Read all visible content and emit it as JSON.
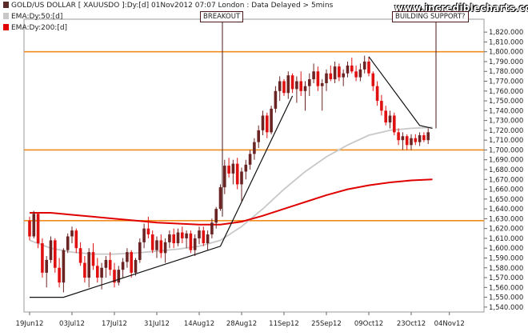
{
  "header": {
    "title_line": "GOLD/US DOLLAR [ XAUUSDO ]:Dy:[d]  01Nov2012 07:07 London : Data Delayed > 5mins",
    "legend": [
      {
        "label": "EMA:Dy:50:[d]",
        "color": "#c8c8c8"
      },
      {
        "label": "EMA:Dy:200:[d]",
        "color": "#e00000"
      }
    ],
    "watermark": "www.incrediblecharts.com"
  },
  "annotations": {
    "breakout": "BREAKOUT",
    "support": "BUILDING SUPPORT?"
  },
  "colors": {
    "up": "#6b2424",
    "down": "#e01010",
    "ema50": "#c8c8c8",
    "ema200": "#e00000",
    "hline": "#f08c1e",
    "trend": "#111111"
  },
  "chart_data": {
    "type": "candlestick",
    "title": "GOLD/US DOLLAR [ XAUUSDO ]:Dy:[d]",
    "ylim": [
      1535,
      1825
    ],
    "y_ticks": [
      1540,
      1550,
      1560,
      1570,
      1580,
      1590,
      1600,
      1610,
      1620,
      1630,
      1640,
      1650,
      1660,
      1670,
      1680,
      1690,
      1700,
      1710,
      1720,
      1730,
      1740,
      1750,
      1760,
      1770,
      1780,
      1790,
      1800,
      1810,
      1820
    ],
    "x_tick_labels": [
      {
        "label": "19Jun12",
        "day": 0
      },
      {
        "label": "03Jul12",
        "day": 10
      },
      {
        "label": "17Jul12",
        "day": 20
      },
      {
        "label": "31Jul12",
        "day": 30
      },
      {
        "label": "14Aug12",
        "day": 40
      },
      {
        "label": "28Aug12",
        "day": 50
      },
      {
        "label": "11Sep12",
        "day": 60
      },
      {
        "label": "25Sep12",
        "day": 70
      },
      {
        "label": "09Oct12",
        "day": 80
      },
      {
        "label": "23Oct12",
        "day": 90
      },
      {
        "label": "04Nov12",
        "day": 99
      }
    ],
    "horizontal_lines": [
      1800,
      1700,
      1628
    ],
    "trend_lines": [
      {
        "points": [
          [
            0,
            1550
          ],
          [
            8,
            1550
          ],
          [
            45,
            1602
          ],
          [
            62,
            1755
          ]
        ]
      },
      {
        "points": [
          [
            80,
            1795
          ],
          [
            92,
            1725
          ],
          [
            95,
            1722
          ]
        ]
      }
    ],
    "candles": [
      [
        1628,
        1632,
        1608,
        1612
      ],
      [
        1612,
        1638,
        1610,
        1635
      ],
      [
        1635,
        1636,
        1600,
        1605
      ],
      [
        1605,
        1610,
        1570,
        1575
      ],
      [
        1575,
        1592,
        1560,
        1588
      ],
      [
        1588,
        1612,
        1585,
        1608
      ],
      [
        1608,
        1610,
        1575,
        1580
      ],
      [
        1580,
        1590,
        1560,
        1565
      ],
      [
        1565,
        1600,
        1555,
        1598
      ],
      [
        1598,
        1615,
        1595,
        1612
      ],
      [
        1612,
        1622,
        1605,
        1618
      ],
      [
        1618,
        1620,
        1595,
        1600
      ],
      [
        1600,
        1606,
        1582,
        1585
      ],
      [
        1585,
        1592,
        1565,
        1570
      ],
      [
        1570,
        1600,
        1560,
        1596
      ],
      [
        1596,
        1605,
        1578,
        1582
      ],
      [
        1582,
        1590,
        1565,
        1570
      ],
      [
        1570,
        1585,
        1558,
        1580
      ],
      [
        1580,
        1592,
        1570,
        1588
      ],
      [
        1588,
        1596,
        1572,
        1578
      ],
      [
        1578,
        1585,
        1560,
        1565
      ],
      [
        1565,
        1582,
        1562,
        1578
      ],
      [
        1578,
        1590,
        1570,
        1586
      ],
      [
        1586,
        1600,
        1580,
        1596
      ],
      [
        1596,
        1598,
        1570,
        1575
      ],
      [
        1575,
        1590,
        1572,
        1588
      ],
      [
        1588,
        1610,
        1585,
        1606
      ],
      [
        1606,
        1625,
        1600,
        1620
      ],
      [
        1620,
        1632,
        1610,
        1614
      ],
      [
        1614,
        1618,
        1595,
        1598
      ],
      [
        1598,
        1612,
        1590,
        1608
      ],
      [
        1608,
        1614,
        1590,
        1595
      ],
      [
        1595,
        1610,
        1585,
        1606
      ],
      [
        1606,
        1618,
        1600,
        1614
      ],
      [
        1614,
        1620,
        1600,
        1605
      ],
      [
        1605,
        1620,
        1602,
        1616
      ],
      [
        1616,
        1622,
        1605,
        1610
      ],
      [
        1610,
        1618,
        1600,
        1615
      ],
      [
        1615,
        1618,
        1595,
        1598
      ],
      [
        1598,
        1614,
        1592,
        1610
      ],
      [
        1610,
        1622,
        1604,
        1618
      ],
      [
        1618,
        1622,
        1602,
        1605
      ],
      [
        1605,
        1618,
        1598,
        1614
      ],
      [
        1614,
        1630,
        1610,
        1626
      ],
      [
        1626,
        1642,
        1620,
        1640
      ],
      [
        1640,
        1665,
        1638,
        1662
      ],
      [
        1662,
        1690,
        1655,
        1684
      ],
      [
        1684,
        1692,
        1672,
        1676
      ],
      [
        1676,
        1690,
        1665,
        1686
      ],
      [
        1686,
        1692,
        1660,
        1665
      ],
      [
        1665,
        1682,
        1648,
        1678
      ],
      [
        1678,
        1690,
        1670,
        1685
      ],
      [
        1685,
        1700,
        1680,
        1696
      ],
      [
        1696,
        1712,
        1690,
        1708
      ],
      [
        1708,
        1725,
        1702,
        1720
      ],
      [
        1720,
        1740,
        1715,
        1735
      ],
      [
        1735,
        1738,
        1712,
        1718
      ],
      [
        1718,
        1745,
        1716,
        1742
      ],
      [
        1742,
        1765,
        1738,
        1760
      ],
      [
        1760,
        1775,
        1750,
        1770
      ],
      [
        1770,
        1772,
        1755,
        1758
      ],
      [
        1758,
        1780,
        1752,
        1776
      ],
      [
        1776,
        1778,
        1758,
        1762
      ],
      [
        1762,
        1775,
        1748,
        1770
      ],
      [
        1770,
        1780,
        1755,
        1760
      ],
      [
        1760,
        1770,
        1740,
        1765
      ],
      [
        1765,
        1778,
        1755,
        1772
      ],
      [
        1772,
        1788,
        1768,
        1780
      ],
      [
        1780,
        1785,
        1760,
        1765
      ],
      [
        1765,
        1772,
        1740,
        1768
      ],
      [
        1768,
        1782,
        1760,
        1778
      ],
      [
        1778,
        1786,
        1770,
        1772
      ],
      [
        1772,
        1790,
        1768,
        1785
      ],
      [
        1785,
        1788,
        1770,
        1774
      ],
      [
        1774,
        1782,
        1765,
        1778
      ],
      [
        1778,
        1790,
        1774,
        1786
      ],
      [
        1786,
        1794,
        1778,
        1780
      ],
      [
        1780,
        1786,
        1770,
        1774
      ],
      [
        1774,
        1788,
        1770,
        1782
      ],
      [
        1782,
        1796,
        1778,
        1790
      ],
      [
        1790,
        1795,
        1775,
        1778
      ],
      [
        1778,
        1780,
        1760,
        1765
      ],
      [
        1765,
        1770,
        1745,
        1750
      ],
      [
        1750,
        1756,
        1735,
        1740
      ],
      [
        1740,
        1745,
        1725,
        1728
      ],
      [
        1728,
        1740,
        1722,
        1735
      ],
      [
        1735,
        1738,
        1715,
        1718
      ],
      [
        1718,
        1722,
        1705,
        1710
      ],
      [
        1710,
        1718,
        1700,
        1714
      ],
      [
        1714,
        1716,
        1700,
        1705
      ],
      [
        1705,
        1716,
        1700,
        1712
      ],
      [
        1712,
        1716,
        1705,
        1708
      ],
      [
        1708,
        1718,
        1704,
        1715
      ],
      [
        1715,
        1718,
        1708,
        1710
      ],
      [
        1710,
        1722,
        1706,
        1718
      ]
    ],
    "ema50": [
      [
        0,
        1608
      ],
      [
        5,
        1600
      ],
      [
        10,
        1596
      ],
      [
        15,
        1594
      ],
      [
        20,
        1594
      ],
      [
        25,
        1595
      ],
      [
        30,
        1597
      ],
      [
        35,
        1599
      ],
      [
        40,
        1602
      ],
      [
        45,
        1608
      ],
      [
        50,
        1622
      ],
      [
        55,
        1640
      ],
      [
        60,
        1660
      ],
      [
        65,
        1678
      ],
      [
        70,
        1693
      ],
      [
        75,
        1705
      ],
      [
        80,
        1715
      ],
      [
        85,
        1720
      ],
      [
        90,
        1722
      ],
      [
        95,
        1723
      ]
    ],
    "ema200": [
      [
        0,
        1636
      ],
      [
        5,
        1636
      ],
      [
        10,
        1634
      ],
      [
        15,
        1632
      ],
      [
        20,
        1630
      ],
      [
        25,
        1628
      ],
      [
        30,
        1626
      ],
      [
        35,
        1625
      ],
      [
        40,
        1624
      ],
      [
        45,
        1624
      ],
      [
        50,
        1627
      ],
      [
        55,
        1633
      ],
      [
        60,
        1640
      ],
      [
        65,
        1647
      ],
      [
        70,
        1654
      ],
      [
        75,
        1660
      ],
      [
        80,
        1664
      ],
      [
        85,
        1667
      ],
      [
        90,
        1669
      ],
      [
        95,
        1670
      ]
    ]
  }
}
